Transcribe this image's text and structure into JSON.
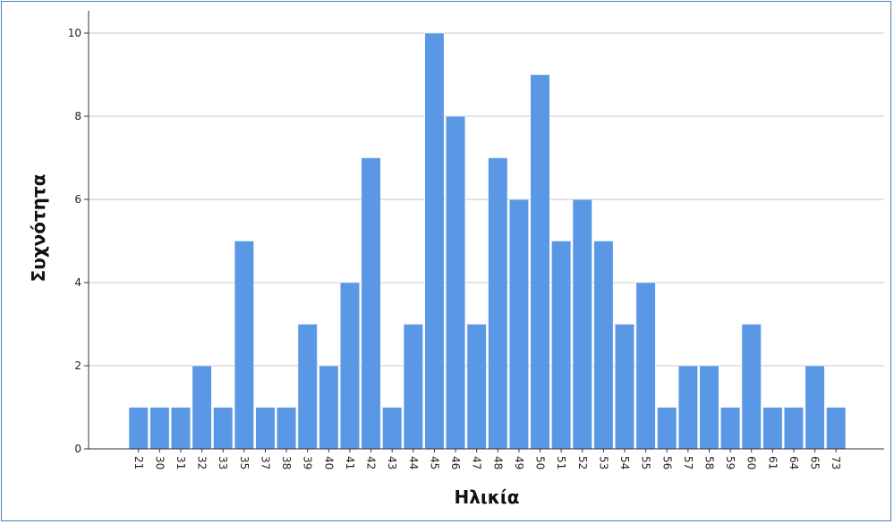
{
  "chart_data": {
    "type": "bar",
    "xlabel": "Ηλικία",
    "ylabel": "Συχνότητα",
    "ylim": [
      0,
      10
    ],
    "yticks": [
      0,
      2,
      4,
      6,
      8,
      10
    ],
    "grid": true,
    "bar_color": "#5a98e6",
    "categories": [
      "21",
      "30",
      "31",
      "32",
      "33",
      "35",
      "37",
      "38",
      "39",
      "40",
      "41",
      "42",
      "43",
      "44",
      "45",
      "46",
      "47",
      "48",
      "49",
      "50",
      "51",
      "52",
      "53",
      "54",
      "55",
      "56",
      "57",
      "58",
      "59",
      "60",
      "61",
      "64",
      "65",
      "73"
    ],
    "values": [
      1,
      1,
      1,
      2,
      1,
      5,
      1,
      1,
      3,
      2,
      4,
      7,
      1,
      3,
      10,
      8,
      3,
      7,
      6,
      9,
      5,
      6,
      5,
      3,
      4,
      1,
      2,
      2,
      1,
      3,
      1,
      1,
      2,
      1
    ]
  }
}
